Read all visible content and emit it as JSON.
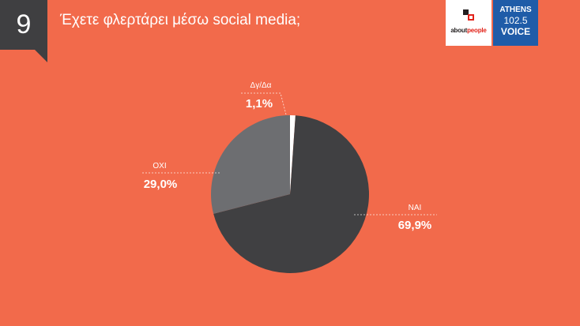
{
  "header": {
    "slide_number": "9",
    "question": "Έχετε φλερτάρει μέσω social media;"
  },
  "logos": {
    "aboutpeople": {
      "prefix": "about",
      "suffix": "people"
    },
    "athens_voice": {
      "line1": "ATHENS",
      "line2": "102.5",
      "line3": "VOICE"
    }
  },
  "colors": {
    "background": "#f26a4b",
    "nai": "#404042",
    "oxi": "#6d6e71",
    "dk": "#ffffff"
  },
  "chart_data": {
    "type": "pie",
    "title": "Έχετε φλερτάρει μέσω social media;",
    "slices": [
      {
        "label": "Δγ/Δα",
        "value": 1.1,
        "display": "1,1%",
        "color": "#ffffff"
      },
      {
        "label": "ΝΑΙ",
        "value": 69.9,
        "display": "69,9%",
        "color": "#404042"
      },
      {
        "label": "ΟΧΙ",
        "value": 29.0,
        "display": "29,0%",
        "color": "#6d6e71"
      }
    ]
  }
}
